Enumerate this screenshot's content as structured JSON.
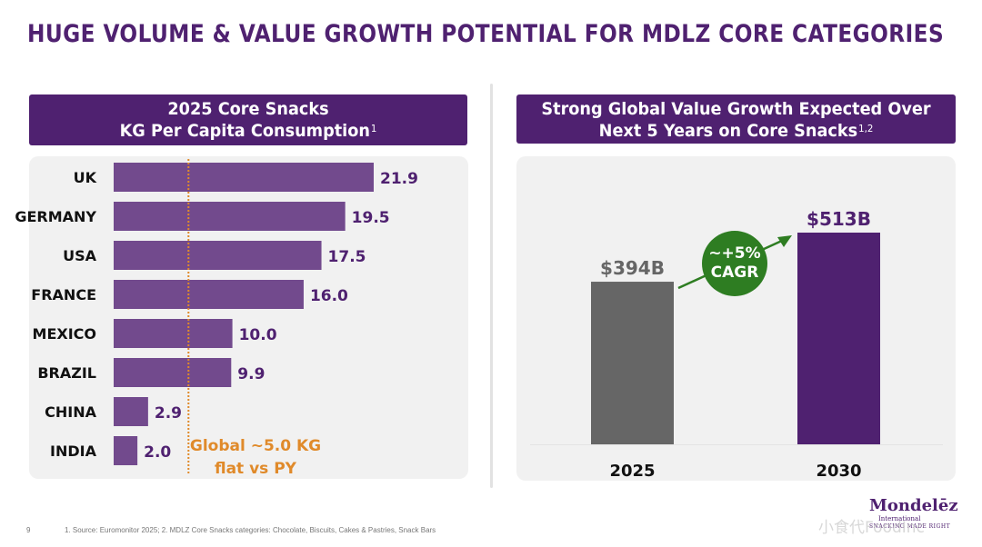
{
  "page": {
    "title": "HUGE VOLUME & VALUE GROWTH POTENTIAL FOR MDLZ CORE CATEGORIES",
    "page_number": "9",
    "footnote": "1. Source: Euromonitor 2025;    2. MDLZ Core Snacks categories: Chocolate, Biscuits, Cakes & Pastries, Snack Bars",
    "logo": {
      "name": "Mondelēz",
      "subtitle": "International",
      "tagline": "SNACKING MADE RIGHT"
    },
    "watermark": "小食代FoodInc"
  },
  "colors": {
    "brand_purple": "#4f2170",
    "bar_purple": "#724a8d",
    "gray_bar": "#666666",
    "annotation_orange": "#e08a2a",
    "cagr_green": "#2e7d22",
    "panel_bg": "#f1f1f1"
  },
  "left_panel": {
    "header_line1": "2025 Core Snacks",
    "header_line2": "KG Per Capita Consumption",
    "header_sup": "1"
  },
  "right_panel": {
    "header_line1": "Strong Global Value Growth Expected Over",
    "header_line2": "Next 5 Years on Core Snacks",
    "header_sup": "1,2"
  },
  "chart_data": [
    {
      "type": "bar",
      "orientation": "horizontal",
      "title": "2025 Core Snacks KG Per Capita Consumption",
      "categories": [
        "UK",
        "GERMANY",
        "USA",
        "FRANCE",
        "MEXICO",
        "BRAZIL",
        "CHINA",
        "INDIA"
      ],
      "values": [
        21.9,
        19.5,
        17.5,
        16.0,
        10.0,
        9.9,
        2.9,
        2.0
      ],
      "value_labels": [
        "21.9",
        "19.5",
        "17.5",
        "16.0",
        "10.0",
        "9.9",
        "2.9",
        "2.0"
      ],
      "xlim": [
        0,
        22
      ],
      "unit": "KG",
      "grid": false,
      "reference_line": {
        "value": 5.0,
        "style": "dotted",
        "label_line1": "Global ~5.0 KG",
        "label_line2": "flat vs PY"
      }
    },
    {
      "type": "bar",
      "orientation": "vertical",
      "title": "Strong Global Value Growth Expected Over Next 5 Years on Core Snacks",
      "categories": [
        "2025",
        "2030"
      ],
      "values": [
        394,
        513
      ],
      "value_labels": [
        "$394B",
        "$513B"
      ],
      "unit": "USD billions",
      "ylim": [
        0,
        513
      ],
      "grid": false,
      "annotation": {
        "line1": "~+5%",
        "line2": "CAGR"
      }
    }
  ]
}
